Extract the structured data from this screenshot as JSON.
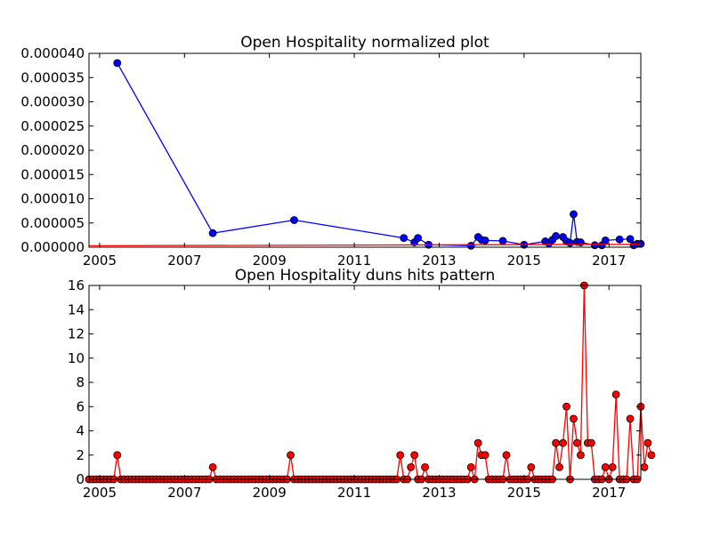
{
  "charts": [
    {
      "type": "line",
      "title": "Open Hospitality normalized plot",
      "xlim": [
        "2004-10-01",
        "2017-10-01"
      ],
      "ylim": [
        0,
        4e-05
      ],
      "x_tick_labels": [
        "2005",
        "2007",
        "2009",
        "2011",
        "2013",
        "2015",
        "2017"
      ],
      "y_tick_labels": [
        "0.000000",
        "0.000005",
        "0.000010",
        "0.000015",
        "0.000020",
        "0.000025",
        "0.000030",
        "0.000035",
        "0.000040"
      ],
      "series": [
        {
          "color": "#0000ff",
          "points": [
            [
              "2005-06-01",
              3.8e-05
            ],
            [
              "2007-09-01",
              2.9e-06
            ],
            [
              "2009-08-01",
              5.6e-06
            ],
            [
              "2012-03-01",
              1.9e-06
            ],
            [
              "2012-06-01",
              1e-06
            ],
            [
              "2012-07-01",
              1.9e-06
            ],
            [
              "2012-10-01",
              5e-07
            ],
            [
              "2013-10-01",
              3e-07
            ],
            [
              "2013-12-01",
              2.1e-06
            ],
            [
              "2014-01-01",
              1.5e-06
            ],
            [
              "2014-02-01",
              1.4e-06
            ],
            [
              "2014-07-01",
              1.3e-06
            ],
            [
              "2015-01-01",
              5e-07
            ],
            [
              "2015-07-01",
              1.2e-06
            ],
            [
              "2015-08-01",
              8e-07
            ],
            [
              "2015-09-01",
              1.5e-06
            ],
            [
              "2015-10-01",
              2.3e-06
            ],
            [
              "2015-12-01",
              2.1e-06
            ],
            [
              "2016-01-01",
              1.2e-06
            ],
            [
              "2016-02-01",
              9e-07
            ],
            [
              "2016-03-01",
              6.8e-06
            ],
            [
              "2016-04-01",
              1.1e-06
            ],
            [
              "2016-05-01",
              1e-06
            ],
            [
              "2016-09-01",
              4e-07
            ],
            [
              "2016-11-01",
              4e-07
            ],
            [
              "2016-12-01",
              1.4e-06
            ],
            [
              "2017-04-01",
              1.6e-06
            ],
            [
              "2017-07-01",
              1.7e-06
            ],
            [
              "2017-08-01",
              4e-07
            ],
            [
              "2017-09-01",
              7e-07
            ],
            [
              "2017-10-01",
              7e-07
            ]
          ]
        },
        {
          "color": "#ff0000",
          "points": [
            [
              "2004-10-01",
              3e-07
            ],
            [
              "2017-10-01",
              6e-07
            ]
          ]
        }
      ]
    },
    {
      "type": "line",
      "title": "Open Hospitality duns hits pattern",
      "xlim": [
        "2004-10-01",
        "2017-10-01"
      ],
      "ylim": [
        0,
        16
      ],
      "x_tick_labels": [
        "2005",
        "2007",
        "2009",
        "2011",
        "2013",
        "2015",
        "2017"
      ],
      "y_tick_labels": [
        "0",
        "2",
        "4",
        "6",
        "8",
        "10",
        "12",
        "14",
        "16"
      ],
      "series": [
        {
          "color": "#ff0000",
          "start": "2004-10-01",
          "frequency": "monthly",
          "values": [
            0,
            0,
            0,
            0,
            0,
            0,
            0,
            0,
            2,
            0,
            0,
            0,
            0,
            0,
            0,
            0,
            0,
            0,
            0,
            0,
            0,
            0,
            0,
            0,
            0,
            0,
            0,
            0,
            0,
            0,
            0,
            0,
            0,
            0,
            0,
            1,
            0,
            0,
            0,
            0,
            0,
            0,
            0,
            0,
            0,
            0,
            0,
            0,
            0,
            0,
            0,
            0,
            0,
            0,
            0,
            0,
            0,
            2,
            0,
            0,
            0,
            0,
            0,
            0,
            0,
            0,
            0,
            0,
            0,
            0,
            0,
            0,
            0,
            0,
            0,
            0,
            0,
            0,
            0,
            0,
            0,
            0,
            0,
            0,
            0,
            0,
            0,
            0,
            2,
            0,
            0,
            1,
            2,
            0,
            0,
            1,
            0,
            0,
            0,
            0,
            0,
            0,
            0,
            0,
            0,
            0,
            0,
            0,
            1,
            0,
            3,
            2,
            2,
            0,
            0,
            0,
            0,
            0,
            2,
            0,
            0,
            0,
            0,
            0,
            0,
            1,
            0,
            0,
            0,
            0,
            0,
            0,
            3,
            1,
            3,
            6,
            0,
            5,
            3,
            2,
            16,
            3,
            3,
            0,
            0,
            0,
            1,
            0,
            1,
            7,
            0,
            0,
            0,
            5,
            0,
            0,
            6,
            1,
            3,
            2
          ]
        }
      ]
    }
  ]
}
